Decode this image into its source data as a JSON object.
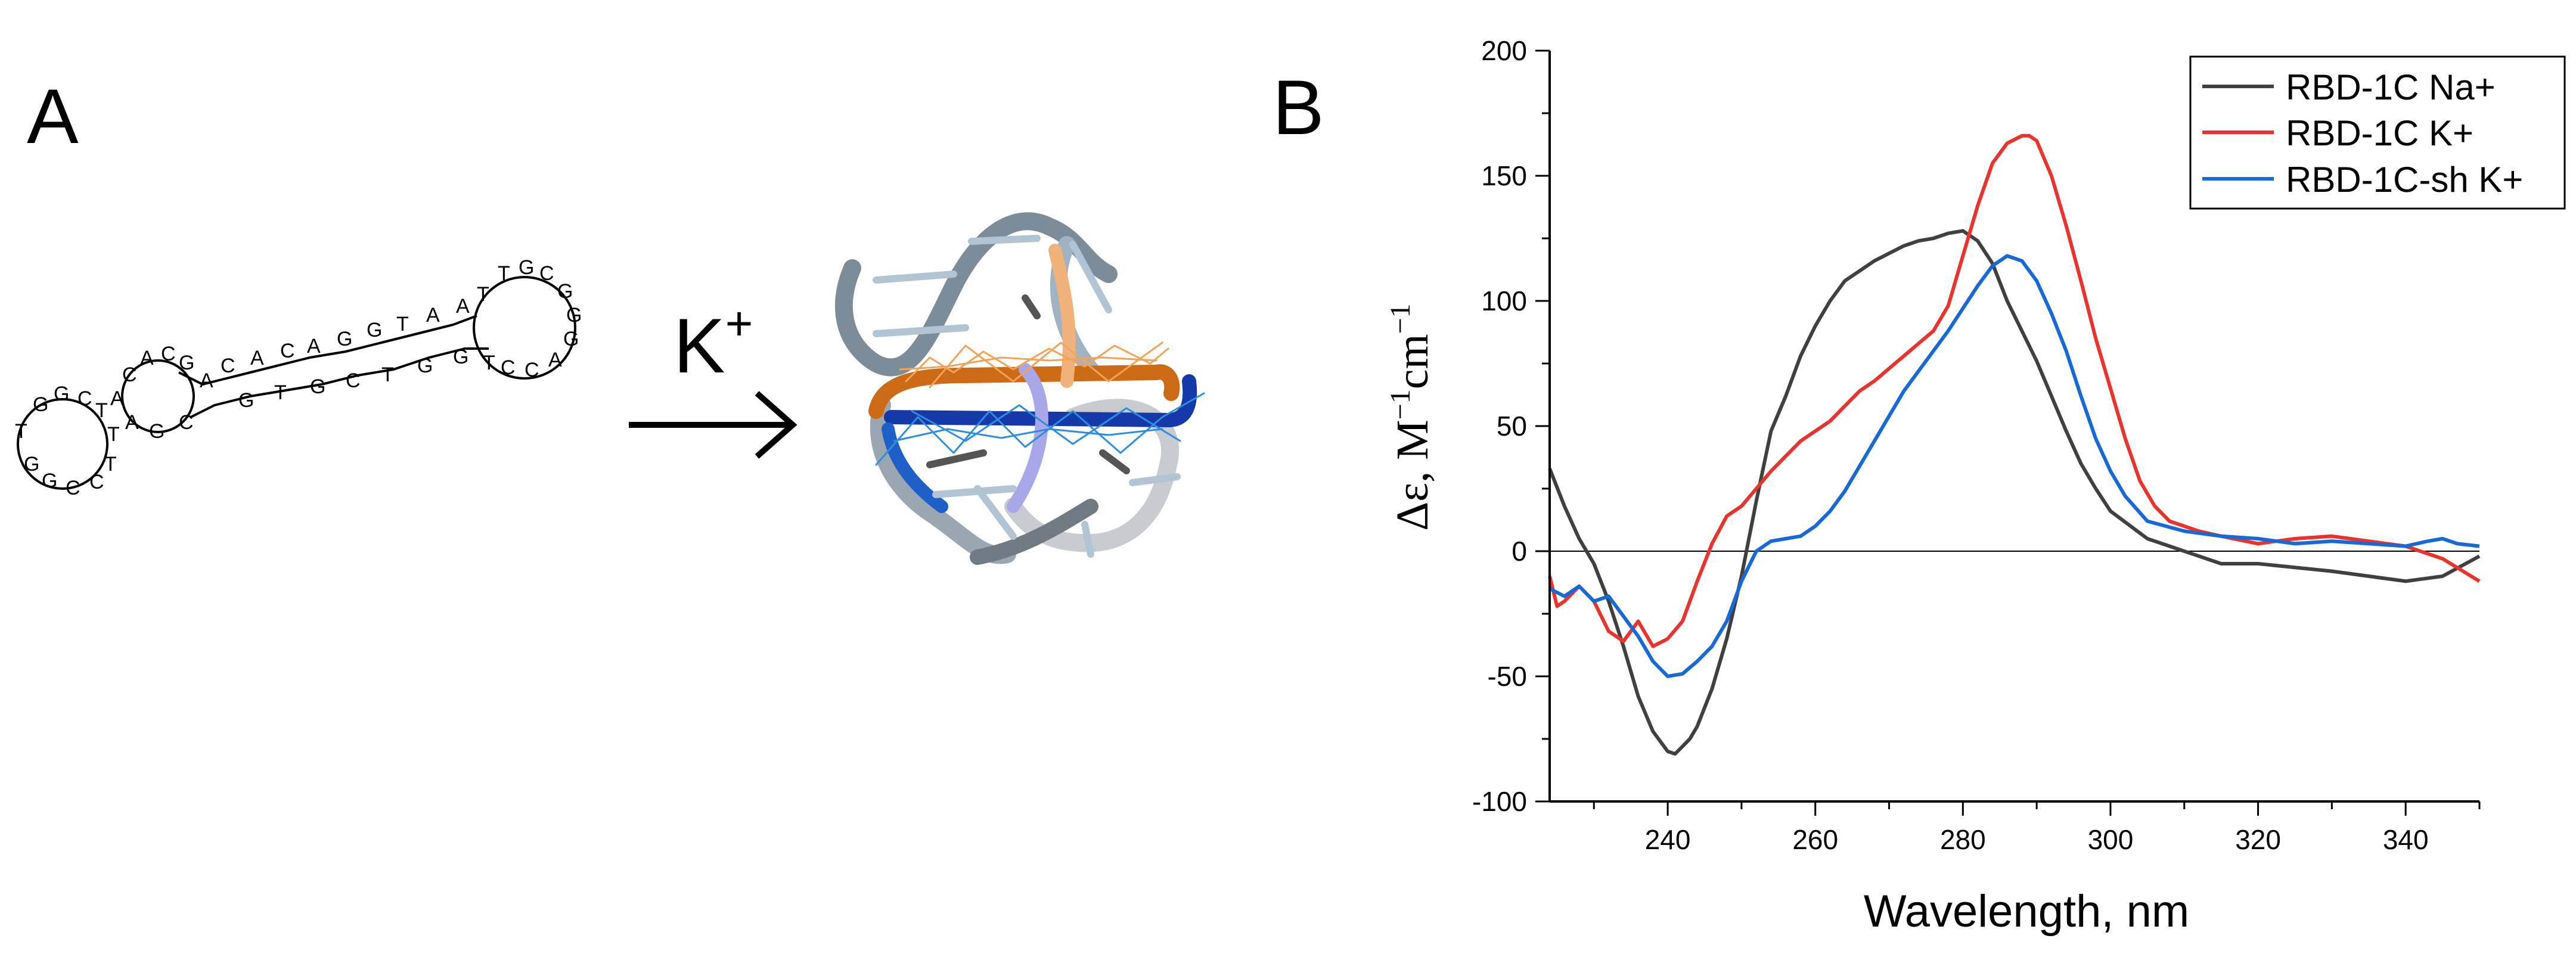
{
  "panels": {
    "a": {
      "label": "A",
      "arrow_label": "K",
      "arrow_superscript": "+",
      "sequence_letters": [
        "T",
        "G",
        "G",
        "C",
        "T",
        "T",
        "T",
        "C",
        "C",
        "G",
        "G",
        "A",
        "A",
        "G",
        "C",
        "C",
        "A",
        "C",
        "G",
        "A",
        "C",
        "A",
        "C",
        "A",
        "G",
        "G",
        "T",
        "A",
        "A",
        "T",
        "T",
        "G",
        "C",
        "G",
        "G",
        "G",
        "A",
        "C",
        "C",
        "T",
        "G",
        "G",
        "T",
        "C",
        "G",
        "T",
        "G"
      ]
    },
    "b": {
      "label": "B"
    }
  },
  "colors": {
    "na": "#404040",
    "k": "#e8342c",
    "sh": "#1669d6",
    "axis": "#000000",
    "orange": "#cc6a16",
    "blue": "#1539a8",
    "tube": "#8fa6b8"
  },
  "chart_data": {
    "type": "line",
    "xlabel": "Wavelength, nm",
    "ylabel_prefix": "Δε, M",
    "ylabel_exp1": "−1",
    "ylabel_mid": "cm",
    "ylabel_exp2": "−1",
    "xlim": [
      224,
      350
    ],
    "ylim": [
      -100,
      200
    ],
    "xticks": [
      240,
      260,
      280,
      300,
      320,
      340
    ],
    "yticks": [
      -100,
      -50,
      0,
      50,
      100,
      150,
      200
    ],
    "legend_position": "top-right",
    "series": [
      {
        "name": "RBD-1C Na+",
        "color": "#404040",
        "x": [
          224,
          226,
          228,
          230,
          232,
          234,
          236,
          238,
          240,
          241,
          242,
          243,
          244,
          246,
          248,
          250,
          252,
          254,
          256,
          258,
          260,
          262,
          264,
          266,
          268,
          270,
          272,
          274,
          276,
          278,
          280,
          282,
          284,
          286,
          288,
          290,
          292,
          294,
          296,
          298,
          300,
          305,
          310,
          315,
          320,
          330,
          340,
          345,
          350
        ],
        "y": [
          33,
          18,
          5,
          -5,
          -20,
          -38,
          -58,
          -72,
          -80,
          -81,
          -78,
          -75,
          -70,
          -55,
          -35,
          -10,
          20,
          48,
          62,
          78,
          90,
          100,
          108,
          112,
          116,
          119,
          122,
          124,
          125,
          127,
          128,
          124,
          115,
          100,
          88,
          76,
          62,
          48,
          35,
          25,
          16,
          5,
          0,
          -5,
          -5,
          -8,
          -12,
          -10,
          -2
        ]
      },
      {
        "name": "RBD-1C K+",
        "color": "#e8342c",
        "x": [
          224,
          225,
          226,
          228,
          230,
          232,
          234,
          236,
          238,
          240,
          242,
          244,
          246,
          248,
          250,
          252,
          254,
          256,
          258,
          260,
          262,
          264,
          266,
          268,
          270,
          272,
          274,
          276,
          278,
          280,
          282,
          284,
          286,
          288,
          289,
          290,
          292,
          294,
          296,
          298,
          300,
          302,
          304,
          306,
          308,
          310,
          312,
          315,
          320,
          325,
          330,
          335,
          340,
          345,
          350
        ],
        "y": [
          -10,
          -22,
          -20,
          -14,
          -20,
          -32,
          -36,
          -28,
          -38,
          -35,
          -28,
          -12,
          3,
          14,
          18,
          25,
          32,
          38,
          44,
          48,
          52,
          58,
          64,
          68,
          73,
          78,
          83,
          88,
          98,
          118,
          138,
          155,
          163,
          166,
          166,
          164,
          150,
          130,
          108,
          85,
          65,
          45,
          28,
          18,
          12,
          10,
          8,
          6,
          3,
          5,
          6,
          4,
          2,
          -3,
          -12
        ]
      },
      {
        "name": "RBD-1C-sh K+",
        "color": "#1669d6",
        "x": [
          224,
          226,
          228,
          230,
          232,
          234,
          236,
          238,
          240,
          242,
          244,
          246,
          248,
          250,
          252,
          254,
          256,
          258,
          260,
          262,
          264,
          266,
          268,
          270,
          272,
          274,
          276,
          278,
          280,
          282,
          284,
          286,
          288,
          290,
          292,
          294,
          296,
          298,
          300,
          302,
          305,
          310,
          315,
          320,
          325,
          330,
          335,
          340,
          343,
          345,
          347,
          350
        ],
        "y": [
          -15,
          -18,
          -14,
          -20,
          -18,
          -26,
          -34,
          -44,
          -50,
          -49,
          -44,
          -38,
          -28,
          -12,
          0,
          4,
          5,
          6,
          10,
          16,
          24,
          34,
          44,
          54,
          64,
          72,
          80,
          88,
          97,
          106,
          114,
          118,
          116,
          108,
          95,
          80,
          62,
          45,
          32,
          22,
          12,
          8,
          6,
          5,
          3,
          4,
          3,
          2,
          4,
          5,
          3,
          2
        ]
      }
    ]
  }
}
